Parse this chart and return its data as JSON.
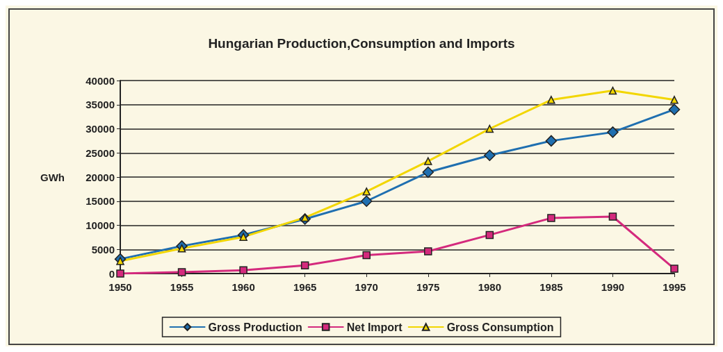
{
  "chart_data": {
    "type": "line",
    "title": "Hungarian Production,Consumption and Imports",
    "ylabel": "GWh",
    "categories": [
      "1950",
      "1955",
      "1960",
      "1965",
      "1970",
      "1975",
      "1980",
      "1985",
      "1990",
      "1995"
    ],
    "series": [
      {
        "name": "Gross Production",
        "color": "#1f6fb0",
        "marker": "diamond",
        "values": [
          3000,
          5700,
          8000,
          11300,
          15000,
          21000,
          24500,
          27500,
          29300,
          34000
        ]
      },
      {
        "name": "Net Import",
        "color": "#d42a7d",
        "marker": "square",
        "values": [
          0,
          300,
          700,
          1700,
          3800,
          4600,
          8000,
          11500,
          11800,
          1000
        ]
      },
      {
        "name": "Gross Consumption",
        "color": "#f2d600",
        "marker": "triangle",
        "values": [
          2600,
          5200,
          7600,
          11600,
          17000,
          23300,
          30000,
          36000,
          37900,
          36000
        ]
      }
    ],
    "ylim": [
      0,
      40000
    ],
    "yticks": [
      0,
      5000,
      10000,
      15000,
      20000,
      25000,
      30000,
      35000,
      40000
    ],
    "grid": "y",
    "legend": "bottom",
    "line_style": "solid"
  }
}
